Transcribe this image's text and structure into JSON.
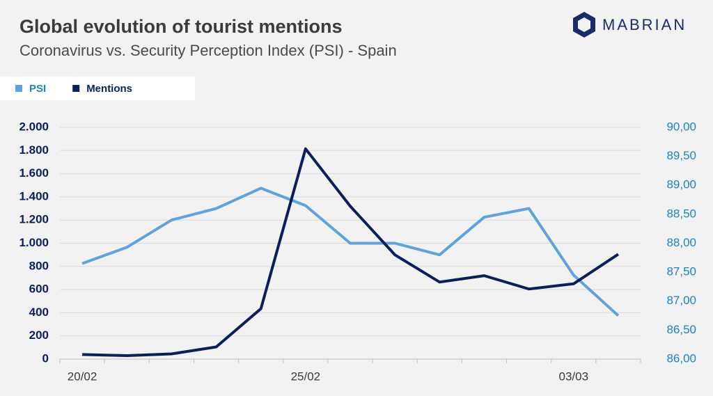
{
  "brand": "MABRIAN",
  "chart_data": {
    "type": "line",
    "title": "Global evolution of tourist mentions",
    "subtitle": "Coronavirus vs. Security Perception Index (PSI) - Spain",
    "categories": [
      "20/02",
      null,
      null,
      null,
      null,
      "25/02",
      null,
      null,
      null,
      null,
      null,
      "03/03",
      null
    ],
    "series": [
      {
        "name": "PSI",
        "color": "#5fa2dd",
        "axis": "y2",
        "values": [
          87.65,
          87.93,
          88.4,
          88.6,
          88.95,
          88.65,
          88.0,
          88.0,
          87.8,
          88.45,
          88.6,
          87.45,
          86.75
        ]
      },
      {
        "name": "Mentions",
        "color": "#0c1f5b",
        "values": [
          40,
          30,
          45,
          105,
          435,
          1815,
          1320,
          900,
          665,
          720,
          605,
          650,
          905
        ]
      }
    ],
    "ylim": [
      0,
      2000
    ],
    "yticks": [
      0,
      200,
      400,
      600,
      800,
      {
        "value": 1000,
        "label": "1.000"
      },
      {
        "value": 1200,
        "label": "1.200"
      },
      {
        "value": 1400,
        "label": "1.400"
      },
      {
        "value": 1600,
        "label": "1.600"
      },
      {
        "value": 1800,
        "label": "1.800"
      },
      {
        "value": 2000,
        "label": "2.000"
      }
    ],
    "y2lim": [
      86,
      90
    ],
    "y2ticks": [
      {
        "value": 86,
        "label": "86,00"
      },
      {
        "value": 86.5,
        "label": "86,50"
      },
      {
        "value": 87,
        "label": "87,00"
      },
      {
        "value": 87.5,
        "label": "87,50"
      },
      {
        "value": 88,
        "label": "88,00"
      },
      {
        "value": 88.5,
        "label": "88,50"
      },
      {
        "value": 89,
        "label": "89,00"
      },
      {
        "value": 89.5,
        "label": "89,50"
      },
      {
        "value": 90,
        "label": "90,00"
      }
    ],
    "grid": true
  }
}
